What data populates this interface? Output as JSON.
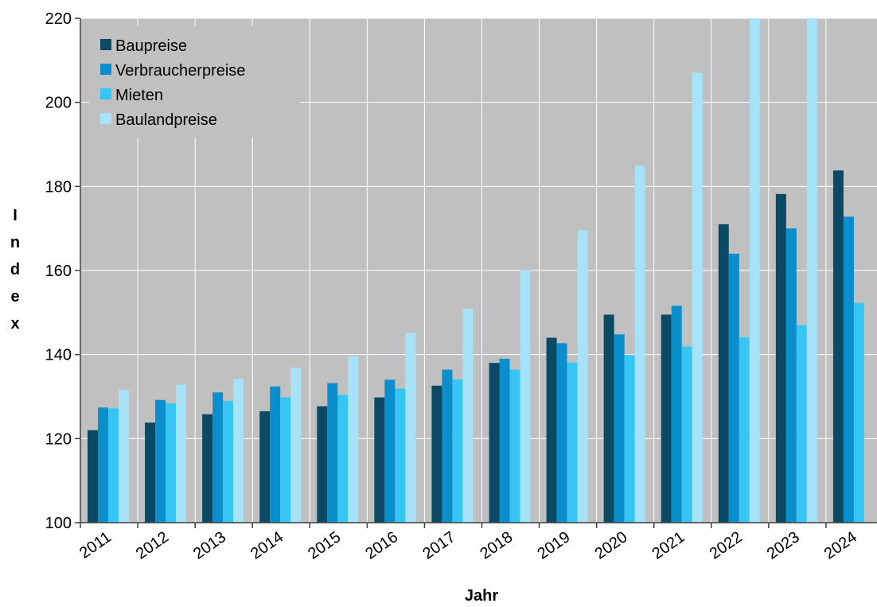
{
  "chart_data": {
    "type": "bar",
    "xlabel": "Jahr",
    "ylabel": "Index",
    "ylim": [
      100,
      220
    ],
    "yticks": [
      100,
      120,
      140,
      160,
      180,
      200,
      220
    ],
    "grid": true,
    "legend_position": "top-left",
    "categories": [
      "2011",
      "2012",
      "2013",
      "2014",
      "2015",
      "2016",
      "2017",
      "2018",
      "2019",
      "2020",
      "2021",
      "2022",
      "2023",
      "2024"
    ],
    "series": [
      {
        "name": "Baupreise",
        "color": "#0b4a64",
        "values": [
          122.0,
          123.8,
          125.8,
          126.5,
          127.7,
          129.8,
          132.6,
          138.0,
          144.0,
          149.5,
          149.5,
          171.0,
          178.2,
          183.8
        ]
      },
      {
        "name": "Verbraucherpreise",
        "color": "#0a8fcc",
        "values": [
          127.4,
          129.2,
          131.0,
          132.4,
          133.2,
          134.0,
          136.4,
          139.0,
          142.7,
          144.8,
          151.6,
          164.0,
          170.0,
          172.8
        ]
      },
      {
        "name": "Mieten",
        "color": "#36c5f5",
        "values": [
          127.2,
          128.4,
          129.0,
          129.8,
          130.4,
          131.9,
          134.1,
          136.4,
          138.1,
          139.9,
          141.9,
          144.1,
          147.0,
          152.3
        ]
      },
      {
        "name": "Baulandpreise",
        "color": "#a6e2f8",
        "values": [
          131.6,
          132.9,
          134.2,
          136.9,
          139.6,
          145.1,
          150.9,
          160.1,
          169.6,
          184.9,
          207.1,
          220.0,
          220.0,
          null
        ]
      }
    ]
  }
}
